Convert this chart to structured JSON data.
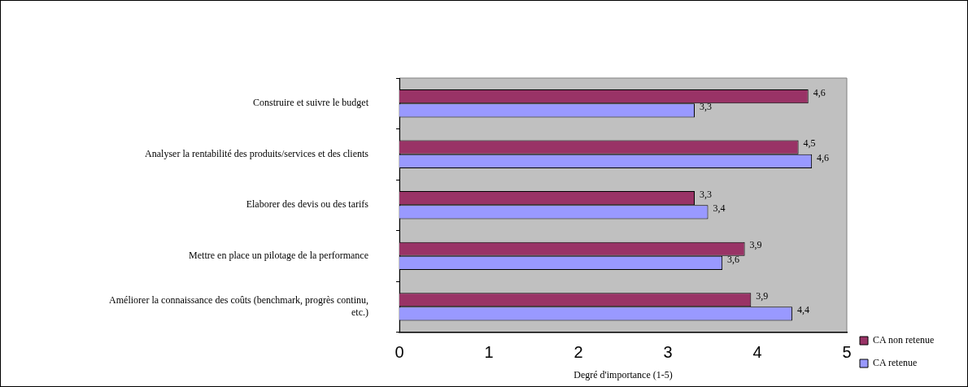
{
  "chart_data": {
    "type": "bar",
    "orientation": "horizontal",
    "xlabel": "Degré d'importance (1-5)",
    "categories": [
      "Construire et suivre le budget",
      "Analyser la rentabilité des produits/services et des clients",
      "Elaborer des devis ou des tarifs",
      "Mettre en place un pilotage de la performance",
      "Améliorer la connaissance des coûts (benchmark, progrès continu, etc.)"
    ],
    "series": [
      {
        "name": "CA non retenue",
        "color": "#993366",
        "values": [
          4.57,
          4.46,
          3.3,
          3.86,
          3.93
        ],
        "value_labels": [
          "4,6",
          "4,5",
          "3,3",
          "3,9",
          "3,9"
        ]
      },
      {
        "name": "CA retenue",
        "color": "#9999ff",
        "values": [
          3.3,
          4.61,
          3.45,
          3.61,
          4.39
        ],
        "value_labels": [
          "3,3",
          "4,6",
          "3,4",
          "3,6",
          "4,4"
        ]
      }
    ],
    "xlim": [
      0,
      5
    ],
    "xticks": [
      0,
      1,
      2,
      3,
      4,
      5
    ],
    "grid": false,
    "legend": "right"
  }
}
